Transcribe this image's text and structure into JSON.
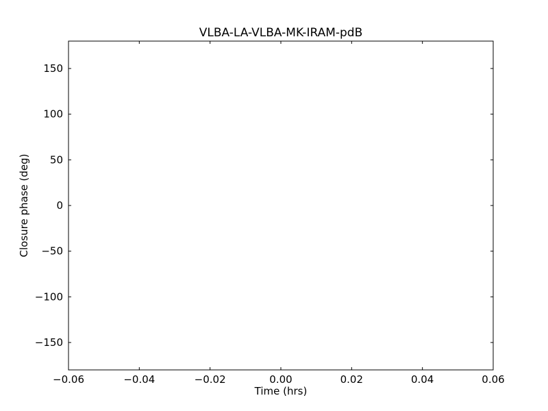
{
  "chart_data": {
    "type": "scatter",
    "title": "VLBA-LA-VLBA-MK-IRAM-pdB",
    "xlabel": "Time (hrs)",
    "ylabel": "Closure phase (deg)",
    "xlim": [
      -0.06,
      0.06
    ],
    "ylim": [
      -180,
      180
    ],
    "xticks": [
      -0.06,
      -0.04,
      -0.02,
      0.0,
      0.02,
      0.04,
      0.06
    ],
    "xtick_labels": [
      "−0.06",
      "−0.04",
      "−0.02",
      "0.00",
      "0.02",
      "0.04",
      "0.06"
    ],
    "yticks": [
      -150,
      -100,
      -50,
      0,
      50,
      100,
      150
    ],
    "ytick_labels": [
      "−150",
      "−100",
      "−50",
      "0",
      "50",
      "100",
      "150"
    ],
    "grid": false,
    "series": []
  }
}
